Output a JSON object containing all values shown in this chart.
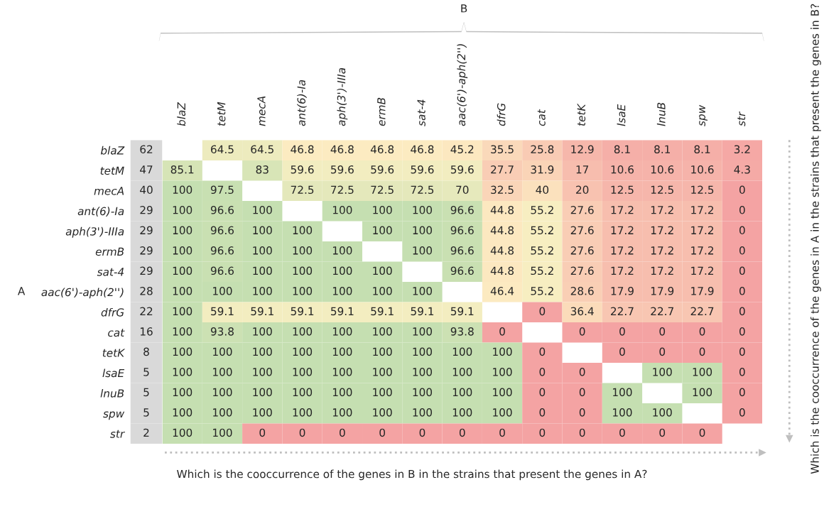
{
  "chart_data": {
    "type": "heatmap",
    "data_labels": true,
    "xlabel": "B",
    "ylabel": "A",
    "categories": [
      "blaZ",
      "tetM",
      "mecA",
      "ant(6)-Ia",
      "aph(3')-IIIa",
      "ermB",
      "sat-4",
      "aac(6')-aph(2'')",
      "dfrG",
      "cat",
      "tetK",
      "lsaE",
      "lnuB",
      "spw",
      "str"
    ],
    "y_categories": [
      "blaZ",
      "tetM",
      "mecA",
      "ant(6)-Ia",
      "aph(3')-IIIa",
      "ermB",
      "sat-4",
      "aac(6')-aph(2'')",
      "dfrG",
      "cat",
      "tetK",
      "lsaE",
      "lnuB",
      "spw",
      "str"
    ],
    "y2_categories": [
      "62",
      "47",
      "40",
      "29",
      "29",
      "29",
      "29",
      "28",
      "22",
      "16",
      "8",
      "5",
      "5",
      "5",
      "2"
    ],
    "cells": [
      [
        null,
        64.5,
        64.5,
        46.8,
        46.8,
        46.8,
        46.8,
        45.2,
        35.5,
        25.8,
        12.9,
        8.1,
        8.1,
        8.1,
        3.2
      ],
      [
        85.1,
        null,
        83,
        59.6,
        59.6,
        59.6,
        59.6,
        59.6,
        27.7,
        31.9,
        17,
        10.6,
        10.6,
        10.6,
        4.3
      ],
      [
        100,
        97.5,
        null,
        72.5,
        72.5,
        72.5,
        72.5,
        70,
        32.5,
        40,
        20,
        12.5,
        12.5,
        12.5,
        0
      ],
      [
        100,
        96.6,
        100,
        null,
        100,
        100,
        100,
        96.6,
        44.8,
        55.2,
        27.6,
        17.2,
        17.2,
        17.2,
        0
      ],
      [
        100,
        96.6,
        100,
        100,
        null,
        100,
        100,
        96.6,
        44.8,
        55.2,
        27.6,
        17.2,
        17.2,
        17.2,
        0
      ],
      [
        100,
        96.6,
        100,
        100,
        100,
        null,
        100,
        96.6,
        44.8,
        55.2,
        27.6,
        17.2,
        17.2,
        17.2,
        0
      ],
      [
        100,
        96.6,
        100,
        100,
        100,
        100,
        null,
        96.6,
        44.8,
        55.2,
        27.6,
        17.2,
        17.2,
        17.2,
        0
      ],
      [
        100,
        100,
        100,
        100,
        100,
        100,
        100,
        null,
        46.4,
        55.2,
        28.6,
        17.9,
        17.9,
        17.9,
        0
      ],
      [
        100,
        59.1,
        59.1,
        59.1,
        59.1,
        59.1,
        59.1,
        59.1,
        null,
        0,
        36.4,
        22.7,
        22.7,
        22.7,
        0
      ],
      [
        100,
        93.8,
        100,
        100,
        100,
        100,
        100,
        93.8,
        0,
        null,
        0,
        0,
        0,
        0,
        0
      ],
      [
        100,
        100,
        100,
        100,
        100,
        100,
        100,
        100,
        100,
        0,
        null,
        0,
        0,
        0,
        0
      ],
      [
        100,
        100,
        100,
        100,
        100,
        100,
        100,
        100,
        100,
        0,
        0,
        null,
        100,
        100,
        0
      ],
      [
        100,
        100,
        100,
        100,
        100,
        100,
        100,
        100,
        100,
        0,
        0,
        100,
        null,
        100,
        0
      ],
      [
        100,
        100,
        100,
        100,
        100,
        100,
        100,
        100,
        100,
        0,
        0,
        100,
        100,
        null,
        0
      ],
      [
        100,
        100,
        0,
        0,
        0,
        0,
        0,
        0,
        0,
        0,
        0,
        0,
        0,
        0,
        null
      ]
    ],
    "annotations": [
      "Which is the cooccurrence of the genes in B in the strains that present the genes in A?",
      "Which is the cooccurrence of the genes in A in the strains that present the genes in B?"
    ]
  }
}
